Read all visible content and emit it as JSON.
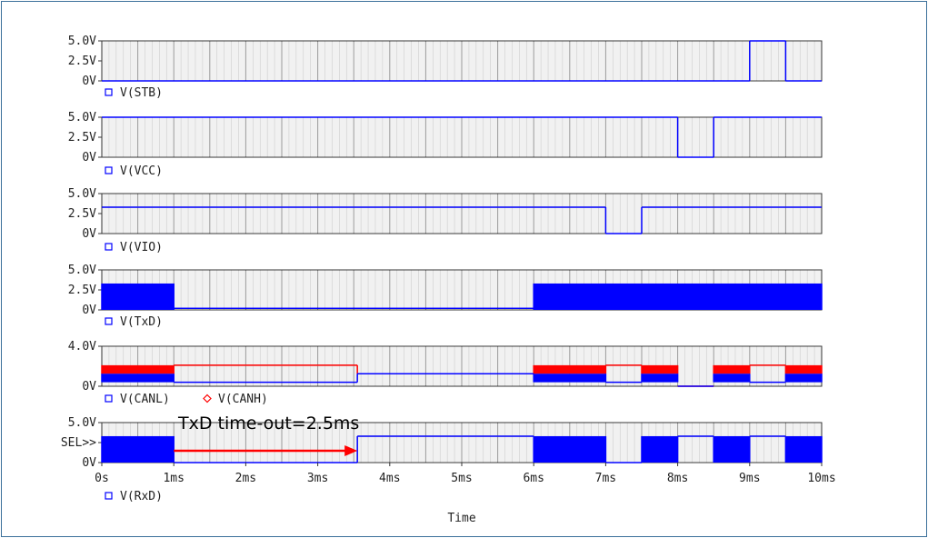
{
  "chart_data": {
    "type": "line",
    "subtype": "transient waveform, 6 stacked plots",
    "xlabel": "Time",
    "x_ticks": [
      "0s",
      "1ms",
      "2ms",
      "3ms",
      "4ms",
      "5ms",
      "6ms",
      "7ms",
      "8ms",
      "9ms",
      "10ms"
    ],
    "xlim_ms": [
      0,
      10
    ],
    "grid": true,
    "colors": {
      "blue": "#0000ff",
      "red": "#ff0000"
    },
    "plots": [
      {
        "y_ticks": [
          "5.0V",
          "2.5V",
          "0V"
        ],
        "ylim": [
          0,
          5
        ],
        "legend": [
          {
            "name": "V(STB)",
            "marker": "square",
            "color": "#0000ff"
          }
        ],
        "series": [
          {
            "name": "V(STB)",
            "color": "#0000ff",
            "segments": [
              [
                0,
                0.5,
                0
              ],
              [
                0.5,
                9,
                0
              ],
              [
                9,
                9.5,
                5
              ],
              [
                9.5,
                10,
                0
              ]
            ]
          }
        ]
      },
      {
        "y_ticks": [
          "5.0V",
          "2.5V",
          "0V"
        ],
        "ylim": [
          0,
          5
        ],
        "legend": [
          {
            "name": "V(VCC)",
            "marker": "square",
            "color": "#0000ff"
          }
        ],
        "series": [
          {
            "name": "V(VCC)",
            "color": "#0000ff",
            "segments": [
              [
                0,
                8,
                5
              ],
              [
                8,
                8.5,
                0
              ],
              [
                8.5,
                10,
                5
              ]
            ]
          }
        ]
      },
      {
        "y_ticks": [
          "5.0V",
          "2.5V",
          "0V"
        ],
        "ylim": [
          0,
          5
        ],
        "legend": [
          {
            "name": "V(VIO)",
            "marker": "square",
            "color": "#0000ff"
          }
        ],
        "series": [
          {
            "name": "V(VIO)",
            "color": "#0000ff",
            "segments": [
              [
                0,
                7,
                3.3
              ],
              [
                7,
                7.5,
                0
              ],
              [
                7.5,
                10,
                3.3
              ]
            ]
          }
        ]
      },
      {
        "y_ticks": [
          "5.0V",
          "2.5V",
          "0V"
        ],
        "ylim": [
          0,
          5
        ],
        "legend": [
          {
            "name": "V(TxD)",
            "marker": "square",
            "color": "#0000ff"
          }
        ],
        "series": [
          {
            "name": "V(TxD)",
            "color": "#0000ff",
            "bands": [
              [
                0,
                1,
                0,
                3.3
              ],
              [
                6,
                10,
                0,
                3.3
              ]
            ],
            "segments": [
              [
                1,
                6,
                0.2
              ]
            ]
          }
        ]
      },
      {
        "y_ticks": [
          "4.0V",
          "0V"
        ],
        "ylim": [
          0,
          8
        ],
        "legend": [
          {
            "name": "V(CANL)",
            "marker": "square",
            "color": "#0000ff"
          },
          {
            "name": "V(CANH)",
            "marker": "diamond",
            "color": "#ff0000"
          }
        ],
        "series": [
          {
            "name": "V(CANH)",
            "color": "#ff0000",
            "bands": [
              [
                0,
                1,
                2.5,
                4.2
              ],
              [
                6,
                7,
                2.5,
                4.2
              ],
              [
                7.5,
                8,
                2.5,
                4.2
              ],
              [
                8.5,
                9,
                2.5,
                4.2
              ],
              [
                9.5,
                10,
                2.5,
                4.2
              ]
            ],
            "segments": [
              [
                1,
                3.55,
                4.2
              ],
              [
                3.55,
                6,
                2.5
              ],
              [
                7,
                7.5,
                4.2
              ],
              [
                8,
                8.5,
                0
              ],
              [
                9,
                9.5,
                4.2
              ]
            ]
          },
          {
            "name": "V(CANL)",
            "color": "#0000ff",
            "bands": [
              [
                0,
                1,
                0.8,
                2.5
              ],
              [
                6,
                7,
                0.8,
                2.5
              ],
              [
                7.5,
                8,
                0.8,
                2.5
              ],
              [
                8.5,
                9,
                0.8,
                2.5
              ],
              [
                9.5,
                10,
                0.8,
                2.5
              ]
            ],
            "segments": [
              [
                1,
                3.55,
                0.8
              ],
              [
                3.55,
                6,
                2.5
              ],
              [
                7,
                7.5,
                0.8
              ],
              [
                8,
                8.5,
                0
              ],
              [
                9,
                9.5,
                0.8
              ]
            ]
          }
        ]
      },
      {
        "y_ticks": [
          "5.0V",
          "SEL>>",
          "0V"
        ],
        "ylim": [
          0,
          5
        ],
        "legend": [
          {
            "name": "V(RxD)",
            "marker": "square",
            "color": "#0000ff"
          }
        ],
        "series": [
          {
            "name": "V(RxD)",
            "color": "#0000ff",
            "bands": [
              [
                0,
                1,
                0,
                3.3
              ],
              [
                6,
                7,
                0,
                3.3
              ],
              [
                7.5,
                8,
                0,
                3.3
              ],
              [
                8.5,
                9,
                0,
                3.3
              ],
              [
                9.5,
                10,
                0,
                3.3
              ]
            ],
            "segments": [
              [
                1,
                3.55,
                0
              ],
              [
                3.55,
                6,
                3.3
              ],
              [
                7,
                7.5,
                0
              ],
              [
                8,
                8.5,
                3.3
              ],
              [
                9,
                9.5,
                3.3
              ]
            ]
          }
        ]
      }
    ],
    "annotation": {
      "text": "TxD time-out=2.5ms",
      "arrow_from_ms": 1.0,
      "arrow_to_ms": 3.55,
      "color": "#ff0000"
    }
  }
}
